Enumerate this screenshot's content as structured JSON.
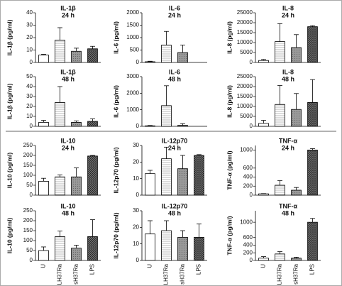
{
  "chart_data": [
    {
      "type": "bar",
      "title": "IL-1β",
      "subtitle": "24 h",
      "ylabel": "IL-1β (pg/ml)",
      "categories": [
        null,
        null,
        null,
        null
      ],
      "values": [
        6,
        18,
        9,
        11
      ],
      "errors": [
        0.5,
        10,
        2.5,
        2
      ],
      "ylim": [
        0,
        40
      ],
      "yticks": [
        0,
        10,
        20,
        30,
        40
      ]
    },
    {
      "type": "bar",
      "title": "IL-6",
      "subtitle": "24 h",
      "ylabel": "IL-6 (pg/ml)",
      "categories": [
        null,
        null,
        null,
        null
      ],
      "values": [
        30,
        700,
        400,
        null
      ],
      "errors": [
        20,
        550,
        300,
        null
      ],
      "ylim": [
        0,
        2000
      ],
      "yticks": [
        0,
        500,
        1000,
        1500,
        2000
      ]
    },
    {
      "type": "bar",
      "title": "IL-8",
      "subtitle": "24 h",
      "ylabel": "IL-8 (pg/ml)",
      "categories": [
        null,
        null,
        null,
        null
      ],
      "values": [
        1000,
        10500,
        7500,
        18000
      ],
      "errors": [
        500,
        9000,
        6500,
        500
      ],
      "ylim": [
        0,
        25000
      ],
      "yticks": [
        0,
        5000,
        10000,
        15000,
        20000,
        25000
      ]
    },
    {
      "type": "bar",
      "title": "IL-1β",
      "subtitle": "48 h",
      "ylabel": "IL-1β (pg/ml)",
      "categories": [
        null,
        null,
        null,
        null
      ],
      "values": [
        4,
        24,
        4,
        5
      ],
      "errors": [
        2,
        16,
        1.5,
        2.5
      ],
      "ylim": [
        0,
        50
      ],
      "yticks": [
        0,
        10,
        20,
        30,
        40,
        50
      ]
    },
    {
      "type": "bar",
      "title": "IL-6",
      "subtitle": "48 h",
      "ylabel": "IL-6 (pg/ml)",
      "categories": [
        null,
        null,
        null,
        null
      ],
      "values": [
        30,
        1250,
        60,
        null
      ],
      "errors": [
        20,
        1200,
        100,
        null
      ],
      "ylim": [
        0,
        3000
      ],
      "yticks": [
        0,
        1000,
        2000,
        3000
      ]
    },
    {
      "type": "bar",
      "title": "IL-8",
      "subtitle": "48 h",
      "ylabel": "IL-8 (pg/ml)",
      "categories": [
        null,
        null,
        null,
        null
      ],
      "values": [
        1500,
        11000,
        8500,
        12000
      ],
      "errors": [
        1500,
        9500,
        8000,
        11500
      ],
      "ylim": [
        0,
        25000
      ],
      "yticks": [
        0,
        5000,
        10000,
        15000,
        20000,
        25000
      ]
    },
    {
      "type": "bar",
      "title": "IL-10",
      "subtitle": "24 h",
      "ylabel": "IL-10 (pg/ml)",
      "categories": [
        null,
        null,
        null,
        null
      ],
      "values": [
        70,
        92,
        92,
        197
      ],
      "errors": [
        15,
        10,
        45,
        3
      ],
      "ylim": [
        0,
        250
      ],
      "yticks": [
        0,
        50,
        100,
        150,
        200,
        250
      ]
    },
    {
      "type": "bar",
      "title": "IL-12p70",
      "subtitle": "24 h",
      "ylabel": "IL-12p70 (pg/ml)",
      "categories": [
        null,
        null,
        null,
        null
      ],
      "values": [
        13,
        22,
        16,
        24
      ],
      "errors": [
        2,
        7,
        8,
        0.5
      ],
      "ylim": [
        0,
        30
      ],
      "yticks": [
        0,
        10,
        20,
        30
      ]
    },
    {
      "type": "bar",
      "title": "TNF-α",
      "subtitle": "24 h",
      "ylabel": "TNF-α (pg/ml)",
      "categories": [
        null,
        null,
        null,
        null
      ],
      "values": [
        30,
        220,
        110,
        1000
      ],
      "errors": [
        5,
        100,
        60,
        30
      ],
      "ylim": [
        0,
        1100
      ],
      "yticks": [
        0,
        200,
        400,
        600,
        1000
      ]
    },
    {
      "type": "bar",
      "title": "IL-10",
      "subtitle": "48 h",
      "ylabel": "IL-10 (pg/ml)",
      "categories": [
        "U",
        "LH37Ra",
        "sH37Ra",
        "LPS"
      ],
      "values": [
        50,
        120,
        62,
        120
      ],
      "errors": [
        18,
        28,
        15,
        85
      ],
      "ylim": [
        0,
        250
      ],
      "yticks": [
        0,
        50,
        100,
        150,
        200,
        250
      ]
    },
    {
      "type": "bar",
      "title": "IL-12p70",
      "subtitle": "48 h",
      "ylabel": "IL-12p70 (pg/ml)",
      "categories": [
        "U",
        "LH37Ra",
        "sH37Ra",
        "LPS"
      ],
      "values": [
        16,
        18,
        14,
        14
      ],
      "errors": [
        8,
        6,
        4,
        8
      ],
      "ylim": [
        0,
        30
      ],
      "yticks": [
        0,
        10,
        20,
        30
      ]
    },
    {
      "type": "bar",
      "title": "TNF-α",
      "subtitle": "48 h",
      "ylabel": "TNF-α (pg/ml)",
      "categories": [
        "U",
        "LH37Ra",
        "sH37Ra",
        "LPS"
      ],
      "values": [
        60,
        170,
        60,
        1000
      ],
      "errors": [
        40,
        60,
        25,
        100
      ],
      "ylim": [
        0,
        1300
      ],
      "yticks": [
        0,
        200,
        400,
        600,
        1000
      ]
    }
  ]
}
